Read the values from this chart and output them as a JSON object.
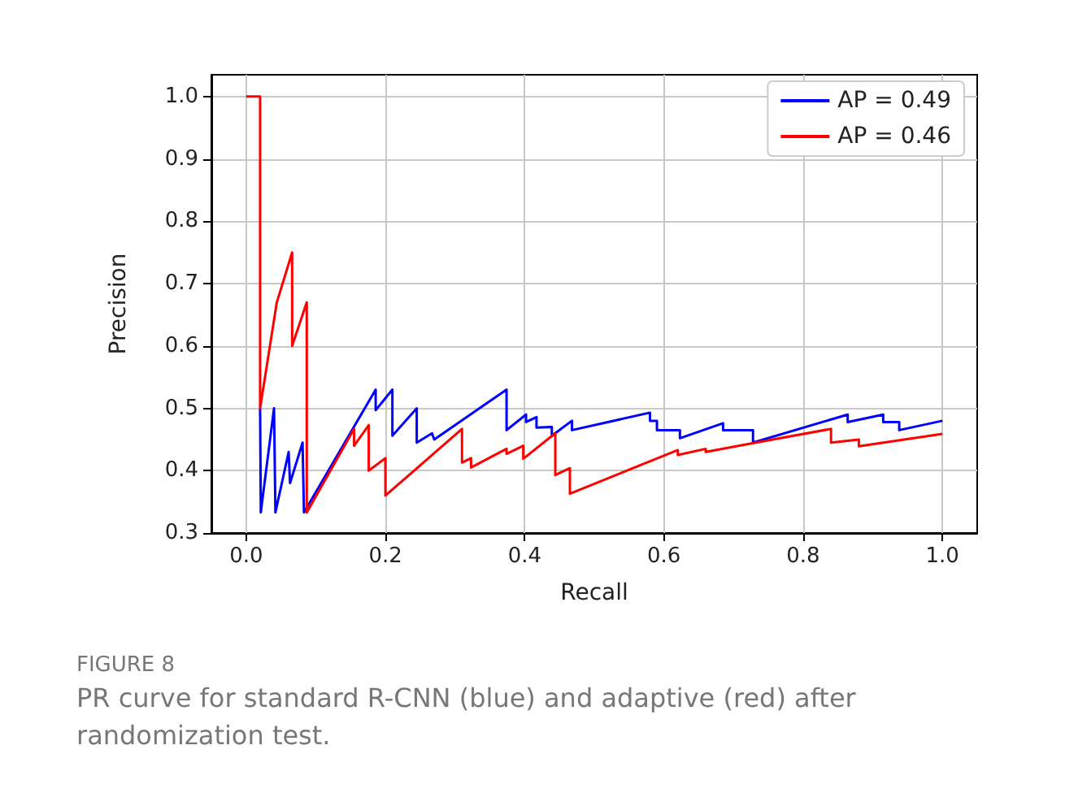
{
  "chart_data": {
    "type": "line",
    "xlabel": "Recall",
    "ylabel": "Precision",
    "xlim": [
      -0.05,
      1.05
    ],
    "ylim": [
      0.3,
      1.035
    ],
    "xticks": [
      {
        "value": 0,
        "label": "0.0"
      },
      0.2,
      0.4,
      0.6,
      0.8,
      {
        "value": 1,
        "label": "1.0"
      }
    ],
    "yticks": [
      0.3,
      0.4,
      0.5,
      0.6,
      0.7,
      0.8,
      0.9,
      {
        "value": 1,
        "label": "1.0"
      }
    ],
    "grid": true,
    "legend": "top right",
    "marker": "none",
    "line_style": "solid",
    "annotations": [
      "FIGURE 8",
      "PR curve for standard R-CNN (blue) and adaptive (red) after randomization test."
    ],
    "series": [
      {
        "name": "AP = 0.49",
        "color": "#0000ff",
        "x": [
          0.02,
          0.021,
          0.04,
          0.042,
          0.061,
          0.063,
          0.081,
          0.083,
          0.186,
          0.186,
          0.21,
          0.21,
          0.245,
          0.245,
          0.267,
          0.27,
          0.374,
          0.374,
          0.402,
          0.402,
          0.417,
          0.417,
          0.439,
          0.439,
          0.468,
          0.468,
          0.58,
          0.58,
          0.59,
          0.59,
          0.623,
          0.623,
          0.685,
          0.685,
          0.728,
          0.728,
          0.864,
          0.864,
          0.915,
          0.915,
          0.938,
          0.938,
          1.0
        ],
        "values": [
          0.5,
          0.333,
          0.5,
          0.333,
          0.43,
          0.38,
          0.445,
          0.333,
          0.53,
          0.497,
          0.53,
          0.456,
          0.5,
          0.445,
          0.46,
          0.45,
          0.53,
          0.465,
          0.49,
          0.478,
          0.486,
          0.469,
          0.47,
          0.456,
          0.48,
          0.465,
          0.493,
          0.48,
          0.48,
          0.465,
          0.465,
          0.452,
          0.476,
          0.465,
          0.465,
          0.445,
          0.49,
          0.478,
          0.49,
          0.478,
          0.478,
          0.465,
          0.48
        ]
      },
      {
        "name": "AP = 0.46",
        "color": "#ff0000",
        "x": [
          0,
          0.02,
          0.02,
          0.044,
          0.066,
          0.066,
          0.087,
          0.087,
          0.155,
          0.155,
          0.176,
          0.176,
          0.2,
          0.2,
          0.31,
          0.31,
          0.323,
          0.323,
          0.374,
          0.374,
          0.398,
          0.398,
          0.444,
          0.444,
          0.465,
          0.465,
          0.62,
          0.62,
          0.66,
          0.66,
          0.732,
          0.84,
          0.84,
          0.88,
          0.88,
          1.0
        ],
        "values": [
          1.0,
          1.0,
          0.5,
          0.67,
          0.75,
          0.6,
          0.67,
          0.333,
          0.467,
          0.44,
          0.473,
          0.4,
          0.42,
          0.36,
          0.467,
          0.413,
          0.42,
          0.405,
          0.435,
          0.427,
          0.44,
          0.419,
          0.46,
          0.393,
          0.404,
          0.363,
          0.433,
          0.425,
          0.435,
          0.43,
          0.445,
          0.467,
          0.445,
          0.45,
          0.439,
          0.459
        ]
      }
    ]
  }
}
